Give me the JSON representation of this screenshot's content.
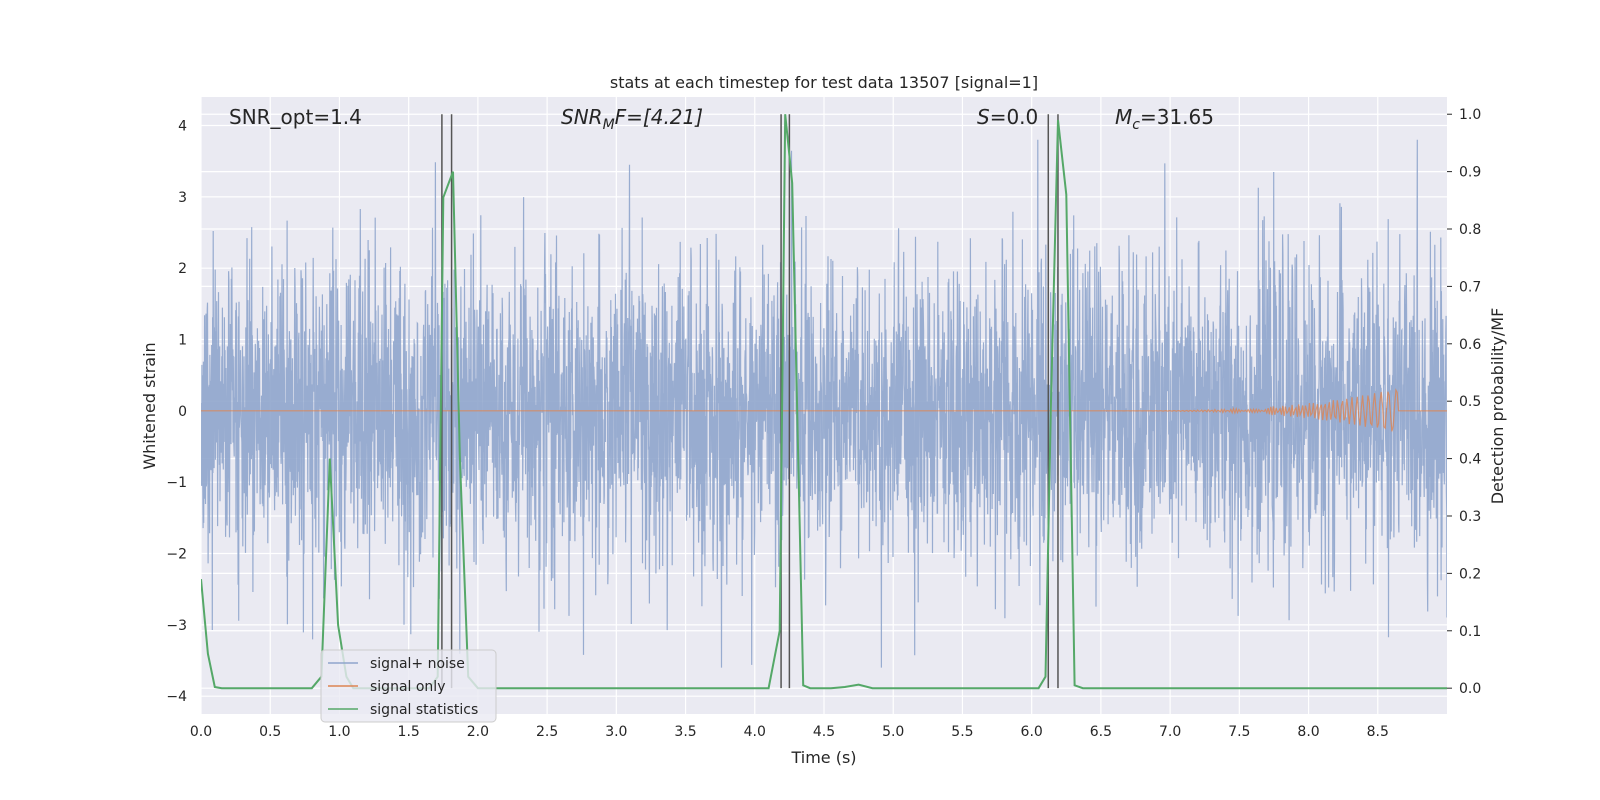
{
  "chart_data": {
    "type": "line",
    "title": "stats at each timestep for test data 13507 [signal=1]",
    "xlabel": "Time (s)",
    "ylabel": "Whitened strain",
    "y2label": "Detection probability/MF",
    "xlim": [
      0.0,
      9.0
    ],
    "ylim": [
      -4.25,
      4.4
    ],
    "y2lim": [
      -0.045,
      1.03
    ],
    "xticks": [
      "0.0",
      "0.5",
      "1.0",
      "1.5",
      "2.0",
      "2.5",
      "3.0",
      "3.5",
      "4.0",
      "4.5",
      "5.0",
      "5.5",
      "6.0",
      "6.5",
      "7.0",
      "7.5",
      "8.0",
      "8.5"
    ],
    "yticks": [
      "4",
      "3",
      "2",
      "1",
      "0",
      "−1",
      "−2",
      "−3",
      "−4"
    ],
    "y2ticks": [
      "1.0",
      "0.9",
      "0.8",
      "0.7",
      "0.6",
      "0.5",
      "0.4",
      "0.3",
      "0.2",
      "0.1",
      "0.0"
    ],
    "grid": true,
    "legend_placement": "lower-left",
    "annotations": {
      "snr_opt": "SNR_opt=1.4",
      "snr_mf_main": "SNR",
      "snr_mf_sub": "M",
      "snr_mf_rest": "F=[4.21]",
      "s_main": "S",
      "s_rest": "=0.0",
      "mc_main": "M",
      "mc_sub": "c",
      "mc_rest": "=31.65"
    },
    "series": [
      {
        "name": "signal+ noise",
        "color": "#8fa5cc",
        "kind": "noise",
        "axis": "left",
        "x_range": [
          0.0,
          9.0
        ],
        "y_range": [
          -3.6,
          3.8
        ]
      },
      {
        "name": "signal only",
        "color": "#dd8452",
        "kind": "chirp",
        "axis": "left",
        "chirp_start": 6.5,
        "chirp_end": 8.65,
        "peak_amplitude": 0.32
      },
      {
        "name": "signal statistics",
        "color": "#55a868",
        "axis": "right",
        "x": [
          0.0,
          0.05,
          0.1,
          0.15,
          0.8,
          0.87,
          0.93,
          0.99,
          1.05,
          1.1,
          1.15,
          1.65,
          1.71,
          1.75,
          1.82,
          1.87,
          1.93,
          2.0,
          4.1,
          4.18,
          4.22,
          4.27,
          4.35,
          4.4,
          4.55,
          4.65,
          4.75,
          4.85,
          6.05,
          6.1,
          6.14,
          6.19,
          6.25,
          6.31,
          6.37,
          6.45,
          9.0
        ],
        "y": [
          0.19,
          0.06,
          0.002,
          0.0,
          0.0,
          0.02,
          0.4,
          0.11,
          0.02,
          0.0,
          0.0,
          0.0,
          0.02,
          0.855,
          0.9,
          0.4,
          0.02,
          0.0,
          0.0,
          0.1,
          1.0,
          0.88,
          0.005,
          0.0,
          0.0,
          0.002,
          0.006,
          0.0,
          0.0,
          0.02,
          0.5,
          0.99,
          0.86,
          0.005,
          0.0,
          0.0,
          0.0
        ]
      }
    ],
    "vlines": [
      1.74,
      1.81,
      4.19,
      4.25,
      6.12,
      6.19
    ]
  }
}
